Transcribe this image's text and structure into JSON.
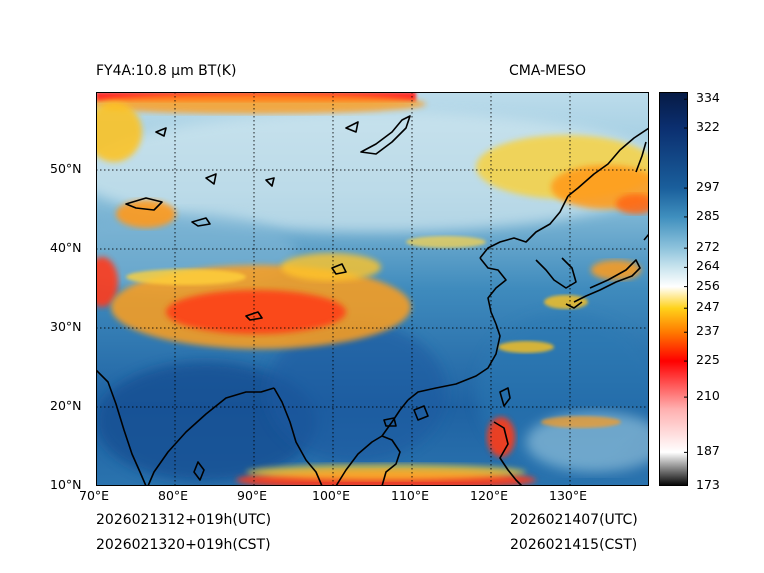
{
  "header": {
    "title_left": "FY4A:10.8 µm BT(K)",
    "title_right": "CMA-MESO"
  },
  "footer": {
    "init_utc": "2026021312+019h(UTC)",
    "init_cst": "2026021320+019h(CST)",
    "valid_utc": "2026021407(UTC)",
    "valid_cst": "2026021415(CST)"
  },
  "map": {
    "lon_ticks": [
      "70°E",
      "80°E",
      "90°E",
      "100°E",
      "110°E",
      "120°E",
      "130°E"
    ],
    "lat_ticks": [
      "50°N",
      "40°N",
      "30°N",
      "20°N",
      "10°N"
    ],
    "lon_range": [
      70,
      140
    ],
    "lat_range": [
      10,
      60
    ]
  },
  "colorbar": {
    "min": 173,
    "max": 337,
    "tick_values": [
      334,
      322,
      297,
      285,
      272,
      264,
      256,
      247,
      237,
      225,
      210,
      187,
      173
    ],
    "tick_labels": [
      "334",
      "322",
      "297",
      "285",
      "272",
      "264",
      "256",
      "247",
      "237",
      "225",
      "210",
      "187",
      "173"
    ],
    "stops": [
      {
        "value": 173,
        "color": "#000000"
      },
      {
        "value": 187,
        "color": "#ffffff"
      },
      {
        "value": 205,
        "color": "#ffb0b0"
      },
      {
        "value": 225,
        "color": "#ff0000"
      },
      {
        "value": 237,
        "color": "#ff7a00"
      },
      {
        "value": 247,
        "color": "#ffd21a"
      },
      {
        "value": 256,
        "color": "#ffffff"
      },
      {
        "value": 264,
        "color": "#c9e4ee"
      },
      {
        "value": 272,
        "color": "#8ec3dc"
      },
      {
        "value": 285,
        "color": "#3f8fbe"
      },
      {
        "value": 297,
        "color": "#1a5f9c"
      },
      {
        "value": 322,
        "color": "#0b2f70"
      },
      {
        "value": 337,
        "color": "#061a44"
      }
    ]
  }
}
